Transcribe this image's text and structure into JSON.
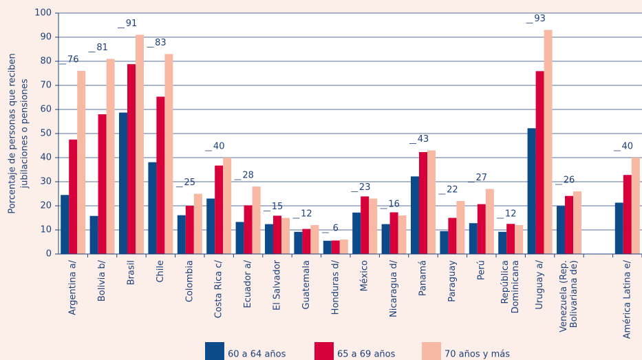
{
  "chart_data": {
    "type": "bar",
    "ylabel": [
      "Porcentaje de personas que reciben",
      "jubilaciones o pensiones"
    ],
    "categories": [
      "Argentina a/",
      "Bolivia b/",
      "Brasil",
      "Chile",
      "Colombia",
      "Costa Rica c/",
      "Ecuador a/",
      "El Salvador",
      "Guatemala",
      "Honduras d/",
      "México",
      "Nicaragua d/",
      "Panamá",
      "Paraguay",
      "Perú",
      [
        "República",
        "Dominicana"
      ],
      "Uruguay a/",
      [
        "Venezuela (Rep.",
        "Bolivariana de)"
      ],
      null,
      "América Latina e/"
    ],
    "series": [
      {
        "name": "60 a 64 años",
        "color": "#0d4a8a",
        "values": [
          24.5,
          15.8,
          58.7,
          38.1,
          16.1,
          23,
          13.3,
          12.4,
          9.2,
          5.5,
          17.2,
          12.4,
          32.2,
          9.5,
          12.8,
          9.2,
          52.2,
          19.9,
          null,
          21.3
        ]
      },
      {
        "name": "65 a 69 años",
        "color": "#d6003a",
        "values": [
          47.5,
          58,
          78.8,
          65.3,
          20,
          36.7,
          20.2,
          15.9,
          10.4,
          5.6,
          23.9,
          17.3,
          42.3,
          15,
          20.7,
          12.5,
          75.9,
          24.1,
          null,
          32.8
        ]
      },
      {
        "name": "70 años y más",
        "color": "#f7b9a4",
        "data_labels": true,
        "values": [
          76,
          81,
          91,
          83,
          25,
          40,
          28,
          15,
          12,
          6,
          23,
          16,
          43,
          22,
          27,
          12,
          93,
          26,
          null,
          40
        ]
      }
    ],
    "ylim": [
      0,
      100
    ],
    "yticks": [
      0,
      10,
      20,
      30,
      40,
      50,
      60,
      70,
      80,
      90,
      100
    ],
    "grid": true
  }
}
